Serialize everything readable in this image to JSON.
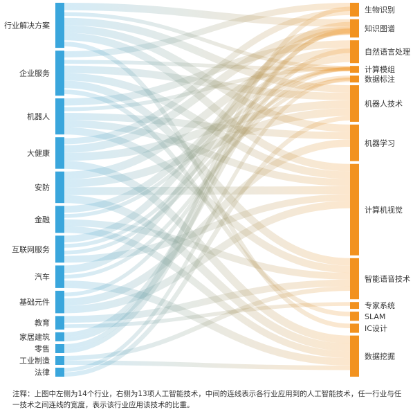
{
  "colors": {
    "left": "#3aa6dc",
    "right": "#f2921f"
  },
  "industries": [
    {
      "label": "行业解决方案",
      "weight": 10
    },
    {
      "label": "企业服务",
      "weight": 10
    },
    {
      "label": "机器人",
      "weight": 8
    },
    {
      "label": "大健康",
      "weight": 7
    },
    {
      "label": "安防",
      "weight": 7
    },
    {
      "label": "金融",
      "weight": 6
    },
    {
      "label": "互联网服务",
      "weight": 6
    },
    {
      "label": "汽车",
      "weight": 5
    },
    {
      "label": "基础元件",
      "weight": 5
    },
    {
      "label": "教育",
      "weight": 3
    },
    {
      "label": "家居建筑",
      "weight": 2
    },
    {
      "label": "零售",
      "weight": 2
    },
    {
      "label": "工业制造",
      "weight": 2
    },
    {
      "label": "法律",
      "weight": 2
    }
  ],
  "technologies": [
    {
      "label": "生物识别",
      "weight": 3
    },
    {
      "label": "知识图谱",
      "weight": 4
    },
    {
      "label": "自然语言处理",
      "weight": 5
    },
    {
      "label": "计算模组",
      "weight": 1.5
    },
    {
      "label": "数据标注",
      "weight": 1.5
    },
    {
      "label": "机器人技术",
      "weight": 8
    },
    {
      "label": "机器学习",
      "weight": 8
    },
    {
      "label": "计算机视觉",
      "weight": 20
    },
    {
      "label": "智能语音技术",
      "weight": 9
    },
    {
      "label": "专家系统",
      "weight": 1.5
    },
    {
      "label": "SLAM",
      "weight": 2
    },
    {
      "label": "IC设计",
      "weight": 2
    },
    {
      "label": "数据挖掘",
      "weight": 9
    }
  ],
  "note": "注释：上图中左侧为14个行业，右侧为13项人工智能技术，中间的连线表示各行业应用到的人工智能技术，任一行业与任一技术之间连线的宽度，表示该行业应用该技术的比重。"
}
